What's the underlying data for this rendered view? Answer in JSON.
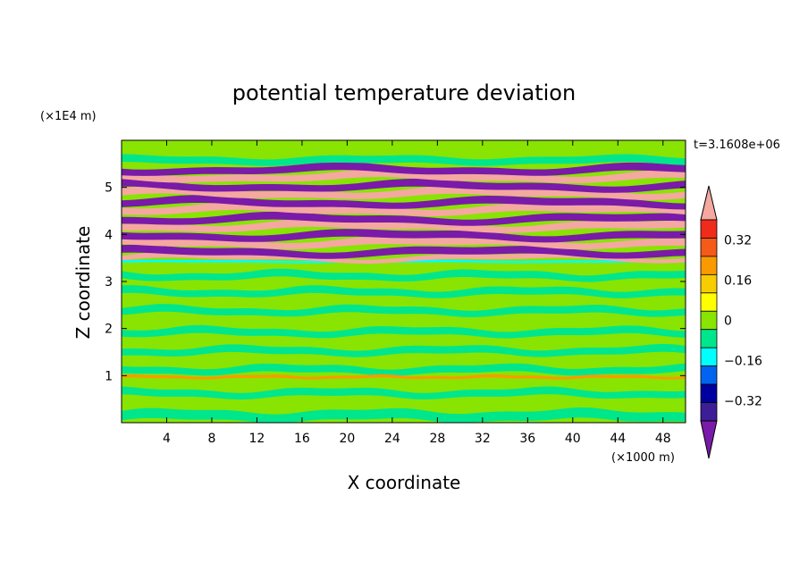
{
  "chart_data": {
    "type": "heatmap",
    "title": "potential temperature deviation",
    "xlabel": "X coordinate",
    "ylabel": "Z coordinate",
    "x_unit": "(×1000 m)",
    "y_unit": "(×1E4 m)",
    "time_label": "t=3.1608e+06",
    "xlim": [
      0,
      50
    ],
    "ylim": [
      0,
      6
    ],
    "x_ticks": [
      4,
      8,
      12,
      16,
      20,
      24,
      28,
      32,
      36,
      40,
      44,
      48
    ],
    "y_ticks": [
      1,
      2,
      3,
      4,
      5
    ],
    "colorbar": {
      "levels": [
        -0.4,
        -0.32,
        -0.24,
        -0.16,
        -0.08,
        0,
        0.08,
        0.16,
        0.24,
        0.32,
        0.4
      ],
      "tick_labels": [
        "0.32",
        "0.16",
        "0",
        "−0.16",
        "−0.32"
      ],
      "tick_values": [
        0.32,
        0.16,
        0,
        -0.16,
        -0.32
      ],
      "colors_top_to_bottom": [
        "#f4a8a0",
        "#ef2b1c",
        "#f55a18",
        "#f99a00",
        "#f7cc00",
        "#ffff00",
        "#88e400",
        "#00e68c",
        "#00ffff",
        "#0064f0",
        "#0000a0",
        "#3c1e96",
        "#7a1aa8"
      ],
      "extend": "both"
    },
    "field_summary": [
      {
        "z_range": [
          0,
          1
        ],
        "description": "mostly near zero (green), small negative patches"
      },
      {
        "z_range": [
          1,
          3.4
        ],
        "description": "weak alternating positive/negative bands, values between -0.08 and 0.08"
      },
      {
        "z_range": [
          3.4,
          5.5
        ],
        "description": "strong alternating bands of high positive (pink) and strong negative (purple), amplitude beyond ±0.4"
      },
      {
        "z_range": [
          5.5,
          6
        ],
        "description": "near zero"
      }
    ]
  }
}
